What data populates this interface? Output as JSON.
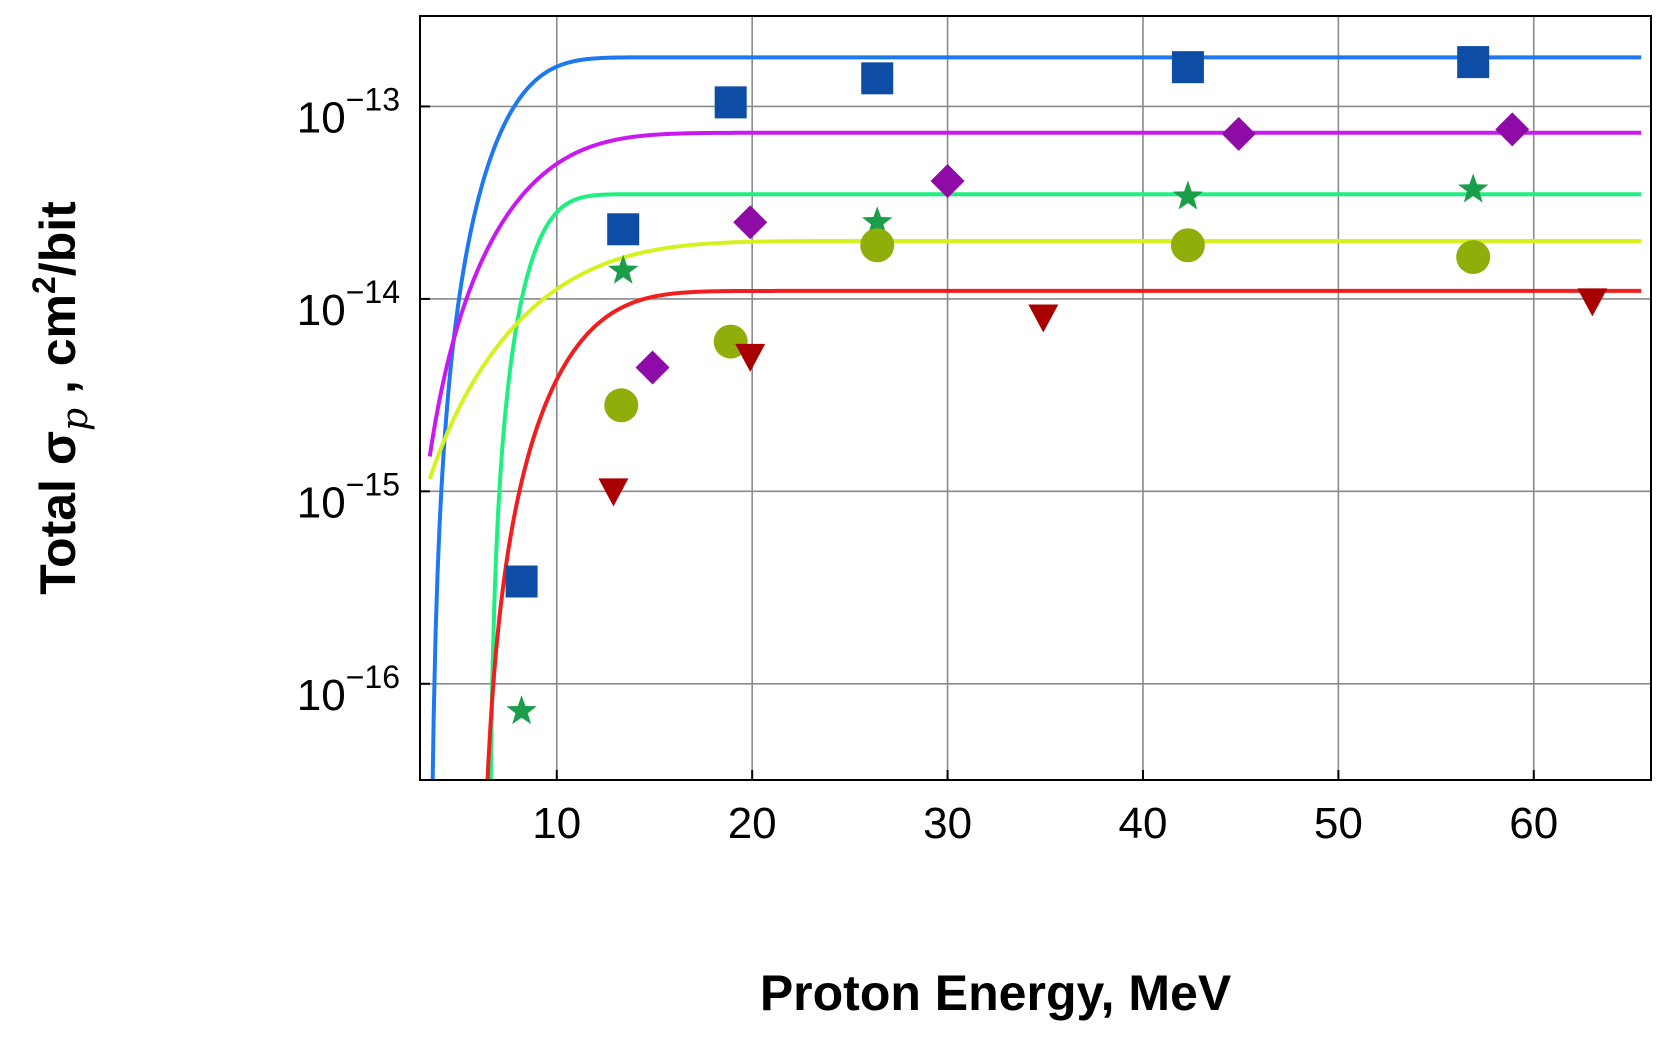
{
  "chart_data": {
    "type": "scatter",
    "title": "",
    "xlabel": "Proton Energy, MeV",
    "ylabel": {
      "prefix": "Total  σ",
      "subscript": "p",
      "mid": " ,  cm",
      "superscript": "2",
      "suffix": "/bit"
    },
    "xlim": [
      3,
      66
    ],
    "ylim_log10": [
      -16.5,
      -12.53
    ],
    "y_scale": "log",
    "grid": true,
    "x_ticks": [
      {
        "value": 10,
        "label": "10"
      },
      {
        "value": 20,
        "label": "20"
      },
      {
        "value": 30,
        "label": "30"
      },
      {
        "value": 40,
        "label": "40"
      },
      {
        "value": 50,
        "label": "50"
      },
      {
        "value": 60,
        "label": "60"
      }
    ],
    "y_ticks": [
      {
        "exp": -13,
        "base": "10",
        "exponent": "−13"
      },
      {
        "exp": -14,
        "base": "10",
        "exponent": "−14"
      },
      {
        "exp": -15,
        "base": "10",
        "exponent": "−15"
      },
      {
        "exp": -16,
        "base": "10",
        "exponent": "−16"
      }
    ],
    "series": [
      {
        "marker": "square",
        "color": "#0D4DA6",
        "line_color": "#1E78F0",
        "points": [
          [
            8.2,
            3.4e-16
          ],
          [
            13.4,
            2.3e-14
          ],
          [
            18.9,
            1.05e-13
          ],
          [
            26.4,
            1.4e-13
          ],
          [
            42.3,
            1.6e-13
          ],
          [
            56.9,
            1.7e-13
          ]
        ],
        "fit": {
          "a": 1.8e-13,
          "e0": 3.5,
          "w": 4.7,
          "s": 2.5
        }
      },
      {
        "marker": "diamond",
        "color": "#8E0BA8",
        "line_color": "#C81AF0",
        "points": [
          [
            14.9,
            4.4e-15
          ],
          [
            19.9,
            2.5e-14
          ],
          [
            30.0,
            4.1e-14
          ],
          [
            44.9,
            7.2e-14
          ],
          [
            58.9,
            7.6e-14
          ]
        ],
        "fit": {
          "a": 7.3e-14,
          "e0": 2.0,
          "w": 7.5,
          "s": 2.4
        }
      },
      {
        "marker": "star",
        "color": "#1A9E4A",
        "line_color": "#1EF080",
        "points": [
          [
            8.2,
            7.2e-17
          ],
          [
            13.4,
            1.4e-14
          ],
          [
            26.4,
            2.5e-14
          ],
          [
            42.3,
            3.4e-14
          ],
          [
            56.9,
            3.7e-14
          ]
        ],
        "fit": {
          "a": 3.5e-14,
          "e0": 6.5,
          "w": 2.8,
          "s": 2.2
        }
      },
      {
        "marker": "circle",
        "color": "#8FAE0A",
        "line_color": "#D6F21E",
        "points": [
          [
            13.3,
            2.8e-15
          ],
          [
            18.9,
            6e-15
          ],
          [
            26.4,
            1.9e-14
          ],
          [
            42.3,
            1.9e-14
          ],
          [
            56.9,
            1.65e-14
          ]
        ],
        "fit": {
          "a": 2e-14,
          "e0": 0.0,
          "w": 10.8,
          "s": 2.5
        }
      },
      {
        "marker": "triangle-down",
        "color": "#A80000",
        "line_color": "#F01E1E",
        "points": [
          [
            12.9,
            1e-15
          ],
          [
            19.9,
            5e-15
          ],
          [
            34.9,
            8e-15
          ],
          [
            63.0,
            9.7e-15
          ]
        ],
        "fit": {
          "a": 1.1e-14,
          "e0": 6.0,
          "w": 5.8,
          "s": 2.3
        }
      }
    ]
  }
}
